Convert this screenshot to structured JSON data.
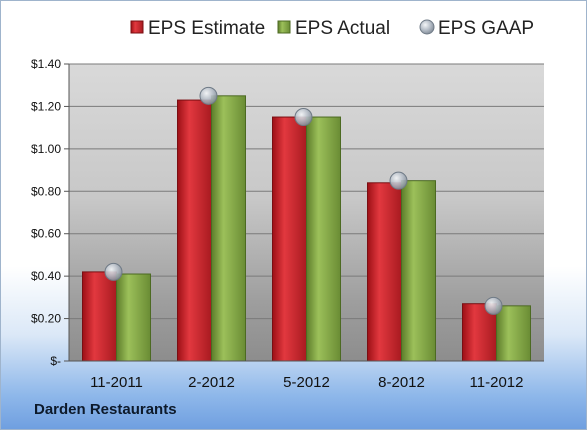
{
  "chart_data": {
    "type": "bar",
    "categories": [
      "11-2011",
      "2-2012",
      "5-2012",
      "8-2012",
      "11-2012"
    ],
    "series": [
      {
        "name": "EPS Estimate",
        "values": [
          0.42,
          1.23,
          1.15,
          0.84,
          0.27
        ],
        "color": "#c8242b",
        "kind": "bar"
      },
      {
        "name": "EPS Actual",
        "values": [
          0.41,
          1.25,
          1.15,
          0.85,
          0.26
        ],
        "color": "#7ea040",
        "kind": "bar"
      },
      {
        "name": "EPS GAAP",
        "values": [
          0.42,
          1.25,
          1.15,
          0.85,
          0.26
        ],
        "color": "#a8b4c2",
        "kind": "marker"
      }
    ],
    "ylim": [
      0,
      1.4
    ],
    "yticks": [
      0,
      0.2,
      0.4,
      0.6,
      0.8,
      1.0,
      1.2,
      1.4
    ],
    "ytick_labels": [
      "$-",
      "$0.20",
      "$0.40",
      "$0.60",
      "$0.80",
      "$1.00",
      "$1.20",
      "$1.40"
    ],
    "legend_position": "top",
    "grid": true,
    "title": "",
    "xlabel": "",
    "ylabel": ""
  },
  "company": "Darden Restaurants"
}
